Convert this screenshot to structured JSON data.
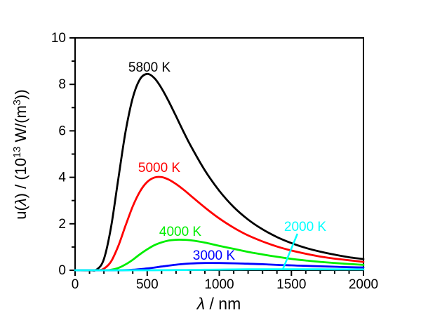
{
  "chart_data": {
    "type": "line",
    "title": "",
    "xlabel": "λ / nm",
    "ylabel": "u(λ) / (10¹³ W/(m³))",
    "xlabel_parts": [
      {
        "t": "λ",
        "italic": true
      },
      {
        "t": " / nm"
      }
    ],
    "ylabel_parts": [
      {
        "t": "u("
      },
      {
        "t": "λ",
        "italic": true
      },
      {
        "t": ") / (10"
      },
      {
        "t": "13",
        "sup": true
      },
      {
        "t": " W/(m"
      },
      {
        "t": "3",
        "sup": true
      },
      {
        "t": "))"
      }
    ],
    "x_axis": {
      "min": 0,
      "max": 2000,
      "major_ticks": [
        0,
        500,
        1000,
        1500,
        2000
      ],
      "tick_labels": [
        "0",
        "500",
        "1000",
        "1500",
        "2000"
      ],
      "minor_step": 100
    },
    "y_axis": {
      "min": 0,
      "max": 10,
      "major_ticks": [
        0,
        2,
        4,
        6,
        8,
        10
      ],
      "tick_labels": [
        "0",
        "2",
        "4",
        "6",
        "8",
        "10"
      ],
      "minor_step": 1
    },
    "grid": false,
    "frame_color": "#000000",
    "series": [
      {
        "name": "5800 K",
        "temperature_K": 5800,
        "color": "#000000",
        "points": [
          [
            0,
            0
          ],
          [
            100,
            0
          ],
          [
            150,
            0.03
          ],
          [
            200,
            0.48
          ],
          [
            250,
            1.88
          ],
          [
            300,
            3.95
          ],
          [
            350,
            5.96
          ],
          [
            400,
            7.42
          ],
          [
            450,
            8.22
          ],
          [
            500,
            8.45
          ],
          [
            550,
            8.27
          ],
          [
            600,
            7.83
          ],
          [
            650,
            7.26
          ],
          [
            700,
            6.63
          ],
          [
            750,
            5.99
          ],
          [
            800,
            5.38
          ],
          [
            900,
            4.3
          ],
          [
            1000,
            3.42
          ],
          [
            1100,
            2.72
          ],
          [
            1200,
            2.18
          ],
          [
            1300,
            1.76
          ],
          [
            1400,
            1.43
          ],
          [
            1500,
            1.17
          ],
          [
            1600,
            0.96
          ],
          [
            1700,
            0.8
          ],
          [
            1800,
            0.67
          ],
          [
            1900,
            0.56
          ],
          [
            2000,
            0.48
          ]
        ]
      },
      {
        "name": "5000 K",
        "temperature_K": 5000,
        "color": "#ff0000",
        "points": [
          [
            0,
            0
          ],
          [
            150,
            0
          ],
          [
            200,
            0.07
          ],
          [
            250,
            0.38
          ],
          [
            300,
            1.05
          ],
          [
            350,
            1.92
          ],
          [
            400,
            2.75
          ],
          [
            450,
            3.39
          ],
          [
            500,
            3.8
          ],
          [
            550,
            3.99
          ],
          [
            600,
            4.01
          ],
          [
            650,
            3.9
          ],
          [
            700,
            3.71
          ],
          [
            750,
            3.48
          ],
          [
            800,
            3.22
          ],
          [
            900,
            2.7
          ],
          [
            1000,
            2.23
          ],
          [
            1100,
            1.83
          ],
          [
            1200,
            1.5
          ],
          [
            1300,
            1.24
          ],
          [
            1400,
            1.02
          ],
          [
            1500,
            0.85
          ],
          [
            1600,
            0.71
          ],
          [
            1700,
            0.59
          ],
          [
            1800,
            0.5
          ],
          [
            1900,
            0.43
          ],
          [
            2000,
            0.36
          ]
        ]
      },
      {
        "name": "4000 K",
        "temperature_K": 4000,
        "color": "#00ee00",
        "points": [
          [
            0,
            0
          ],
          [
            200,
            0
          ],
          [
            250,
            0.02
          ],
          [
            300,
            0.1
          ],
          [
            350,
            0.25
          ],
          [
            400,
            0.45
          ],
          [
            450,
            0.69
          ],
          [
            500,
            0.9
          ],
          [
            550,
            1.08
          ],
          [
            600,
            1.2
          ],
          [
            650,
            1.28
          ],
          [
            700,
            1.31
          ],
          [
            750,
            1.31
          ],
          [
            800,
            1.29
          ],
          [
            900,
            1.19
          ],
          [
            1000,
            1.05
          ],
          [
            1100,
            0.92
          ],
          [
            1200,
            0.79
          ],
          [
            1300,
            0.68
          ],
          [
            1400,
            0.58
          ],
          [
            1500,
            0.49
          ],
          [
            1600,
            0.42
          ],
          [
            1700,
            0.36
          ],
          [
            1800,
            0.31
          ],
          [
            1900,
            0.27
          ],
          [
            2000,
            0.23
          ]
        ]
      },
      {
        "name": "3000 K",
        "temperature_K": 3000,
        "color": "#0000ff",
        "points": [
          [
            0,
            0
          ],
          [
            300,
            0
          ],
          [
            400,
            0.02
          ],
          [
            500,
            0.08
          ],
          [
            600,
            0.16
          ],
          [
            700,
            0.24
          ],
          [
            800,
            0.29
          ],
          [
            900,
            0.31
          ],
          [
            1000,
            0.31
          ],
          [
            1100,
            0.3
          ],
          [
            1200,
            0.28
          ],
          [
            1300,
            0.26
          ],
          [
            1400,
            0.23
          ],
          [
            1500,
            0.21
          ],
          [
            1600,
            0.19
          ],
          [
            1700,
            0.17
          ],
          [
            1800,
            0.15
          ],
          [
            1900,
            0.13
          ],
          [
            2000,
            0.12
          ]
        ]
      },
      {
        "name": "2000 K",
        "temperature_K": 2000,
        "color": "#00ffff",
        "points": [
          [
            0,
            0
          ],
          [
            400,
            0
          ],
          [
            500,
            0.001
          ],
          [
            600,
            0.003
          ],
          [
            700,
            0.008
          ],
          [
            800,
            0.014
          ],
          [
            900,
            0.021
          ],
          [
            1000,
            0.028
          ],
          [
            1100,
            0.034
          ],
          [
            1200,
            0.038
          ],
          [
            1300,
            0.04
          ],
          [
            1400,
            0.041
          ],
          [
            1500,
            0.041
          ],
          [
            1600,
            0.04
          ],
          [
            1700,
            0.039
          ],
          [
            1800,
            0.037
          ],
          [
            1900,
            0.035
          ],
          [
            2000,
            0.033
          ]
        ]
      }
    ],
    "annotations": [
      {
        "text": "5800 K",
        "color": "#000000",
        "x_nm": 516,
        "y_value": 8.76
      },
      {
        "text": "5000 K",
        "color": "#ff0000",
        "x_nm": 584,
        "y_value": 4.44
      },
      {
        "text": "4000 K",
        "color": "#00ee00",
        "x_nm": 730,
        "y_value": 1.69
      },
      {
        "text": "3000 K",
        "color": "#0000ff",
        "x_nm": 963,
        "y_value": 0.66
      },
      {
        "text": "2000 K",
        "color": "#00ffff",
        "x_nm": 1596,
        "y_value": 1.9
      }
    ],
    "leader_line": {
      "color": "#00ffff",
      "from_nm": [
        1542,
        1.57
      ],
      "to_nm": [
        1440,
        0.03
      ]
    }
  }
}
